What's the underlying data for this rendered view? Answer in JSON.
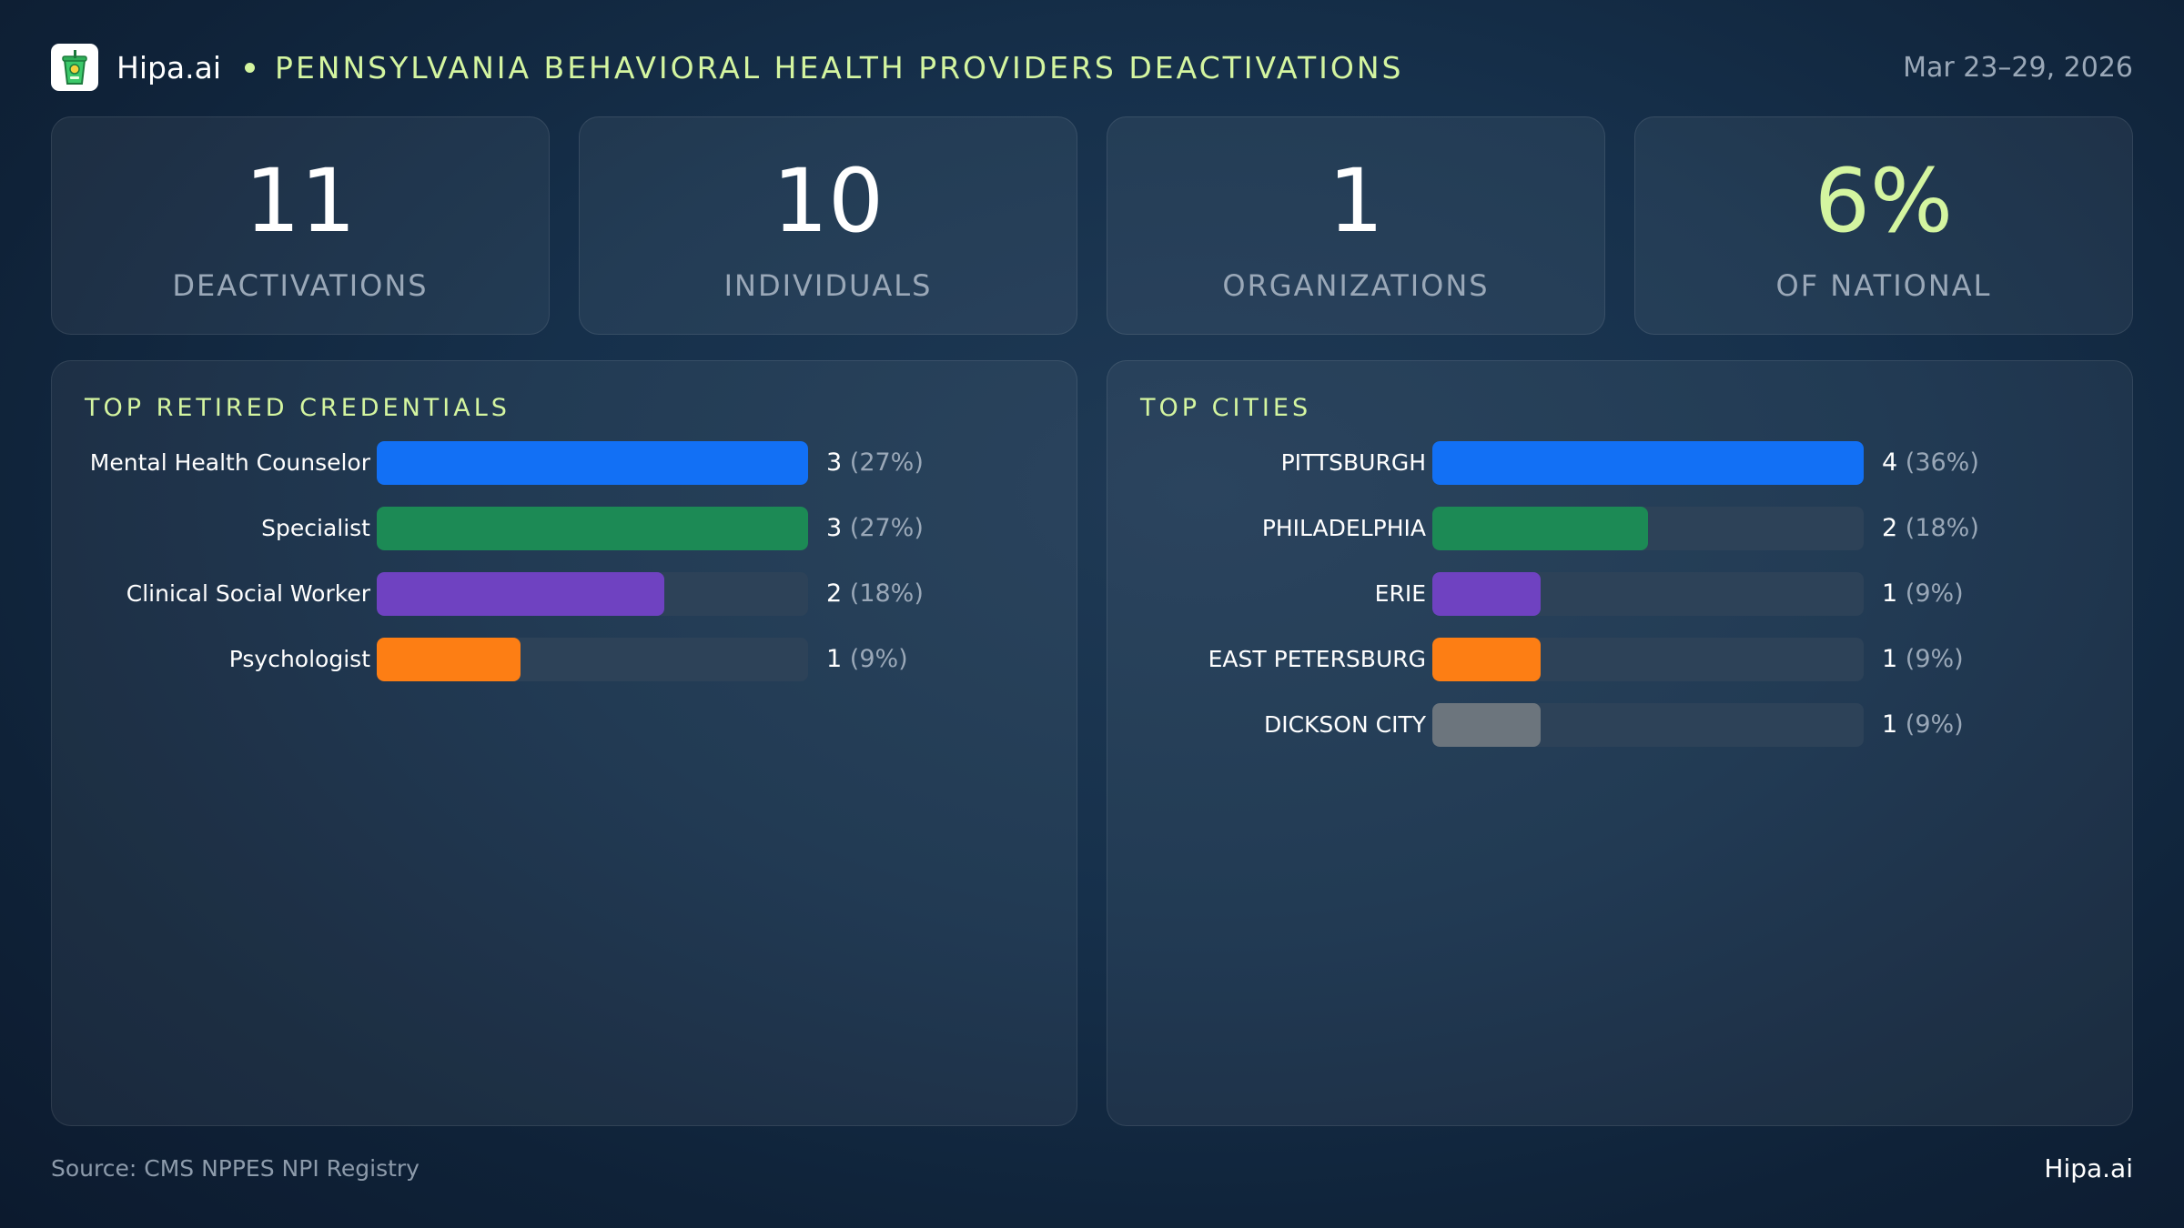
{
  "header": {
    "brand": "Hipa.ai",
    "title": "PENNSYLVANIA BEHAVIORAL HEALTH PROVIDERS DEACTIVATIONS",
    "date": "Mar 23–29, 2026",
    "logo_icon": "cup-logo-icon"
  },
  "kpis": [
    {
      "value": "11",
      "label": "DEACTIVATIONS"
    },
    {
      "value": "10",
      "label": "INDIVIDUALS"
    },
    {
      "value": "1",
      "label": "ORGANIZATIONS"
    },
    {
      "value": "6%",
      "label": "OF NATIONAL"
    }
  ],
  "colors": {
    "accent": "#d4f5a0",
    "blue": "#1270f5",
    "green": "#1c8a55",
    "purple": "#6f42c1",
    "orange": "#fd7e14",
    "gray": "#6c757d"
  },
  "chart_data": [
    {
      "type": "bar",
      "orientation": "horizontal",
      "title": "TOP RETIRED CREDENTIALS",
      "categories": [
        "Mental Health Counselor",
        "Specialist",
        "Clinical Social Worker",
        "Psychologist"
      ],
      "values": [
        3,
        3,
        2,
        1
      ],
      "value_labels": [
        "3",
        "3",
        "2",
        "1"
      ],
      "percent_labels": [
        "(27%)",
        "(27%)",
        "(18%)",
        "(9%)"
      ],
      "colors": [
        "#1270f5",
        "#1c8a55",
        "#6f42c1",
        "#fd7e14"
      ],
      "xlim": [
        0,
        3
      ]
    },
    {
      "type": "bar",
      "orientation": "horizontal",
      "title": "TOP CITIES",
      "categories": [
        "PITTSBURGH",
        "PHILADELPHIA",
        "ERIE",
        "EAST PETERSBURG",
        "DICKSON CITY"
      ],
      "values": [
        4,
        2,
        1,
        1,
        1
      ],
      "value_labels": [
        "4",
        "2",
        "1",
        "1",
        "1"
      ],
      "percent_labels": [
        "(36%)",
        "(18%)",
        "(9%)",
        "(9%)",
        "(9%)"
      ],
      "colors": [
        "#1270f5",
        "#1c8a55",
        "#6f42c1",
        "#fd7e14",
        "#6c757d"
      ],
      "xlim": [
        0,
        4
      ]
    }
  ],
  "footer": {
    "source": "Source: CMS NPPES NPI Registry",
    "brand": "Hipa.ai"
  }
}
